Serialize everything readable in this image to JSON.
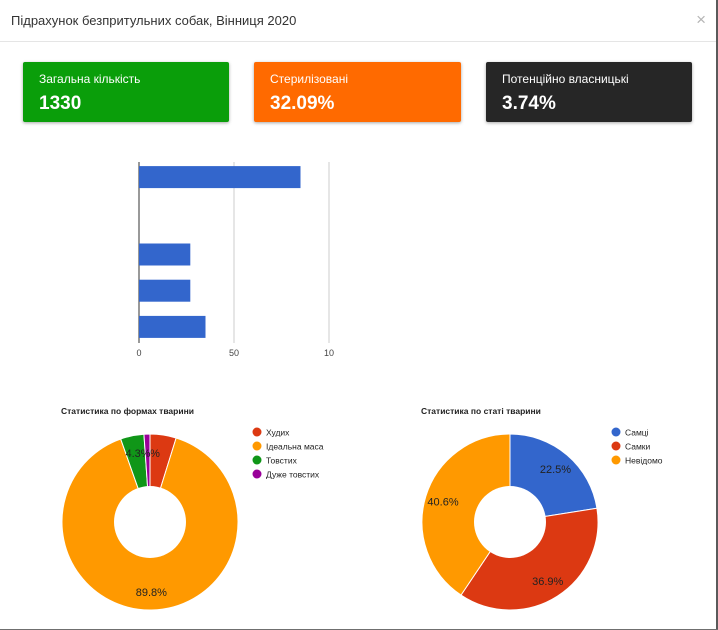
{
  "modal": {
    "title": "Підрахунок безпритульних собак, Вінниця 2020",
    "close_glyph": "×"
  },
  "cards": [
    {
      "label": "Загальна кількість",
      "value": "1330",
      "color": "#0a9e0a"
    },
    {
      "label": "Стерилізовані",
      "value": "32.09%",
      "color": "#ff6a00"
    },
    {
      "label": "Потенційно власницькі",
      "value": "3.74%",
      "color": "#262626"
    }
  ],
  "chart_data": [
    {
      "type": "bar",
      "orientation": "horizontal",
      "categories": [
        "",
        "",
        "",
        "",
        ""
      ],
      "values": [
        85,
        0,
        27,
        27,
        35
      ],
      "ticks": [
        "0",
        "50",
        "10"
      ],
      "xlim": [
        0,
        100
      ],
      "grid": true,
      "colors": [
        "#3366cc"
      ]
    },
    {
      "type": "pie",
      "title": "Статистика по формах тварини",
      "legend_position": "right",
      "categories": [
        "Худих",
        "Ідеальна маса",
        "Товстих",
        "Дуже товстих"
      ],
      "values": [
        4.8,
        89.8,
        4.3,
        1.1
      ],
      "labels": [
        "",
        "89.8%",
        "4.3%",
        "%"
      ],
      "colors": [
        "#dc3912",
        "#ff9900",
        "#109618",
        "#990099"
      ],
      "donut": true
    },
    {
      "type": "pie",
      "title": "Статистика по статі тварини",
      "legend_position": "right",
      "categories": [
        "Самці",
        "Самки",
        "Невідомо"
      ],
      "values": [
        22.5,
        36.9,
        40.6
      ],
      "labels": [
        "22.5%",
        "36.9%",
        "40.6%"
      ],
      "colors": [
        "#3366cc",
        "#dc3912",
        "#ff9900"
      ],
      "donut": true
    }
  ]
}
